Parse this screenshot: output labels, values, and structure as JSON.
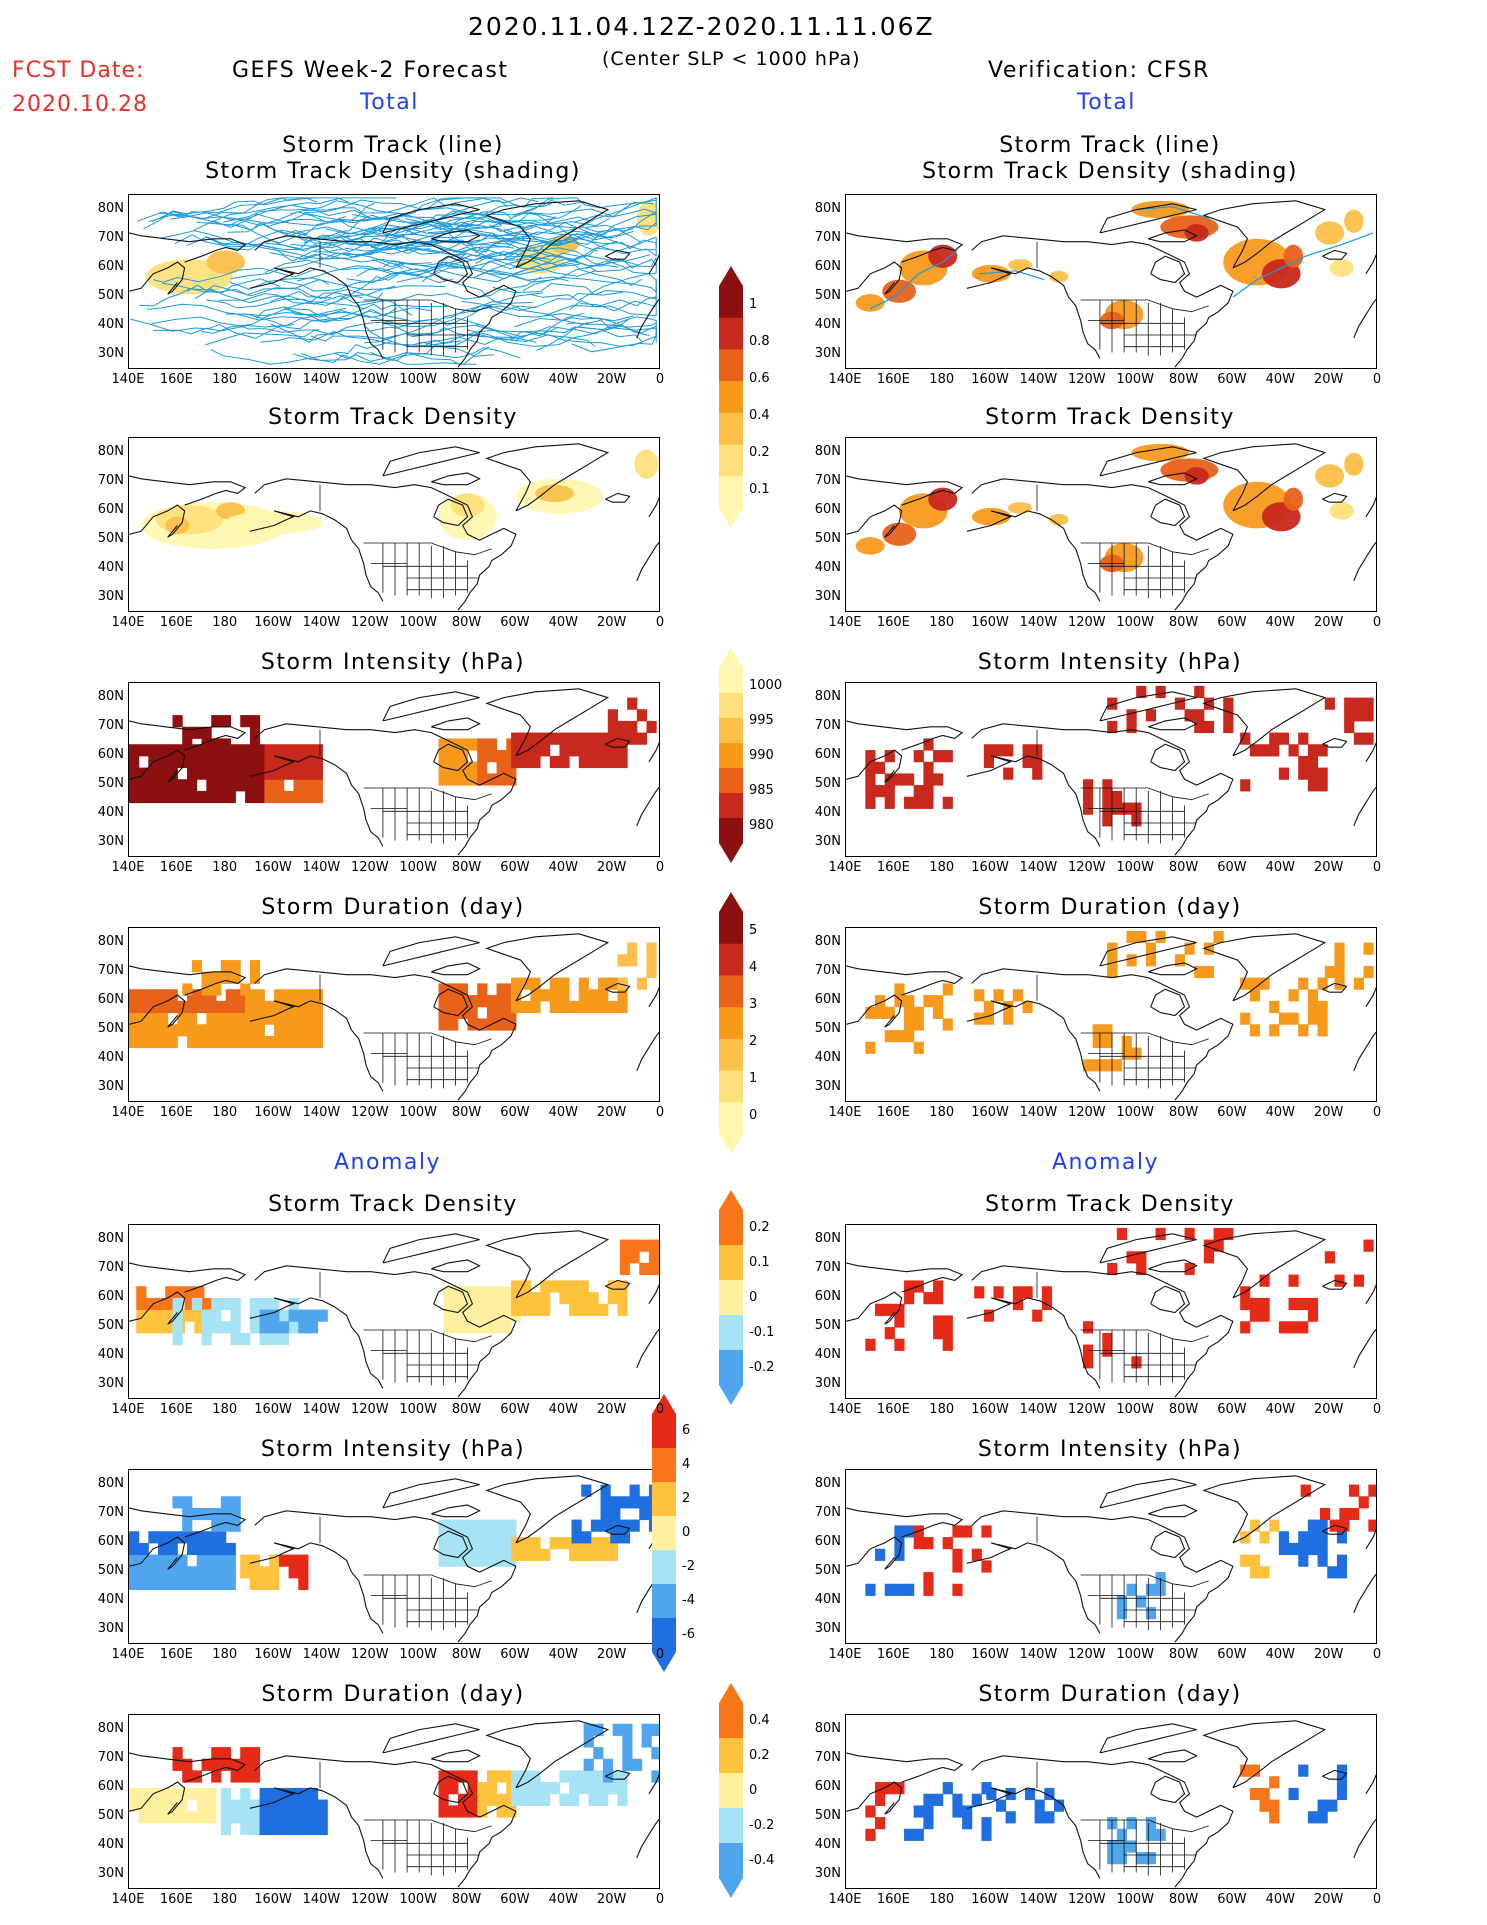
{
  "header": {
    "date_range": "2020.11.04.12Z-2020.11.11.06Z",
    "criterion": "(Center SLP < 1000 hPa)",
    "fcst_label": "FCST Date:",
    "fcst_date": "2020.10.28",
    "left_model": "GEFS Week-2 Forecast",
    "right_model": "Verification: CFSR",
    "total_label": "Total",
    "anomaly_label": "Anomaly"
  },
  "panel_titles": {
    "track_line": "Storm Track (line)",
    "track_shading": "Storm Track Density (shading)",
    "density": "Storm Track Density",
    "intensity": "Storm Intensity (hPa)",
    "duration": "Storm Duration (day)"
  },
  "axes": {
    "lat_labels": [
      "80N",
      "70N",
      "60N",
      "50N",
      "40N",
      "30N"
    ],
    "lon_labels": [
      "140E",
      "160E",
      "180",
      "160W",
      "140W",
      "120W",
      "100W",
      "80W",
      "60W",
      "40W",
      "20W",
      "0"
    ]
  },
  "colorbars": {
    "density_total": [
      "1",
      "0.8",
      "0.6",
      "0.4",
      "0.2",
      "0.1"
    ],
    "intensity_total": [
      "1000",
      "995",
      "990",
      "985",
      "980"
    ],
    "duration_total": [
      "5",
      "4",
      "3",
      "2",
      "1",
      "0"
    ],
    "density_anom": [
      "0.2",
      "0.1",
      "0",
      "-0.1",
      "-0.2"
    ],
    "intensity_anom": [
      "6",
      "4",
      "2",
      "0",
      "-2",
      "-4",
      "-6"
    ],
    "duration_anom": [
      "0.4",
      "0.2",
      "0",
      "-0.2",
      "-0.4"
    ]
  },
  "colors": {
    "track_line": "#1a9ae0",
    "seq": [
      "#fff7b0",
      "#ffe07a",
      "#fcc04a",
      "#f79a1c",
      "#e8621a",
      "#c9281c",
      "#8c1010"
    ],
    "div": [
      "#1f6fe0",
      "#4fa6ef",
      "#a6e3f5",
      "#fff0a0",
      "#ffc23c",
      "#f8761a",
      "#e62a18"
    ]
  }
}
